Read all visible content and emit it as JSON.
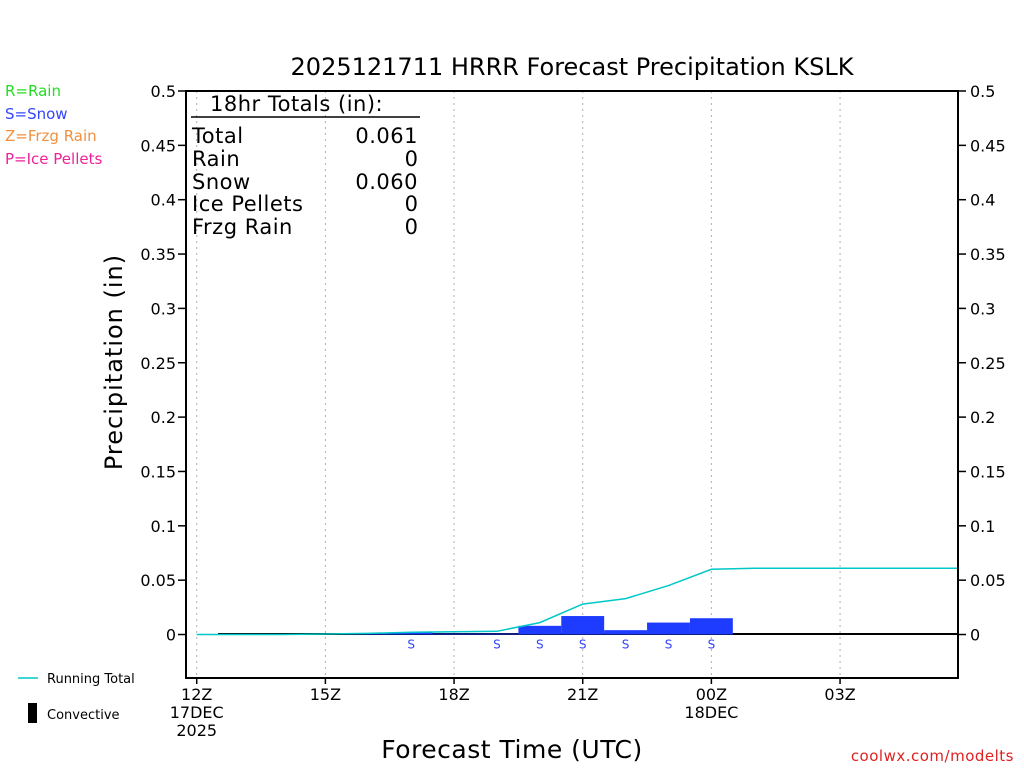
{
  "chart_data": {
    "type": "bar",
    "title": "2025121711 HRRR Forecast Precipitation KSLK",
    "xlabel": "Forecast Time (UTC)",
    "ylabel": "Precipitation (in)",
    "ylim": [
      -0.04,
      0.5
    ],
    "xlim_hours": [
      11.75,
      29.75
    ],
    "yticks": [
      0,
      0.05,
      0.1,
      0.15,
      0.2,
      0.25,
      0.3,
      0.35,
      0.4,
      0.45,
      0.5
    ],
    "ytick_labels": [
      "0",
      "0.05",
      "0.1",
      "0.15",
      "0.2",
      "0.25",
      "0.3",
      "0.35",
      "0.4",
      "0.45",
      "0.5"
    ],
    "xticks": [
      {
        "hour": 12,
        "lines": [
          "12Z",
          "17DEC",
          "2025"
        ]
      },
      {
        "hour": 15,
        "lines": [
          "15Z"
        ]
      },
      {
        "hour": 18,
        "lines": [
          "18Z"
        ]
      },
      {
        "hour": 21,
        "lines": [
          "21Z"
        ]
      },
      {
        "hour": 24,
        "lines": [
          "00Z",
          "18DEC"
        ]
      },
      {
        "hour": 27,
        "lines": [
          "03Z"
        ]
      }
    ],
    "grid": "vertical dotted",
    "bars": {
      "hours": [
        12,
        13,
        14,
        15,
        16,
        17,
        18,
        19,
        20,
        21,
        22,
        23,
        24,
        25,
        26,
        27,
        28,
        29
      ],
      "values": [
        0,
        0,
        0,
        0,
        0.0005,
        0.002,
        0.0005,
        0.0005,
        0.008,
        0.017,
        0.004,
        0.011,
        0.015,
        0,
        0,
        0,
        0,
        0
      ],
      "precip_type": [
        "",
        "",
        "",
        "",
        "",
        "S",
        "",
        "S",
        "S",
        "S",
        "S",
        "S",
        "S",
        "",
        "",
        "",
        "",
        ""
      ],
      "color": "#1e3cff"
    },
    "running_total": {
      "name": "Running Total",
      "hours": [
        12,
        13,
        14,
        15,
        16,
        17,
        18,
        19,
        20,
        21,
        22,
        23,
        24,
        25,
        26,
        27,
        28,
        29,
        29.75
      ],
      "values": [
        0,
        0,
        0,
        0.0005,
        0.001,
        0.002,
        0.0025,
        0.003,
        0.011,
        0.028,
        0.033,
        0.045,
        0.06,
        0.061,
        0.061,
        0.061,
        0.061,
        0.061,
        0.061
      ],
      "color": "#00c8c8"
    }
  },
  "totals_box": {
    "header": "18hr Totals (in):",
    "rows": [
      {
        "label": "Total",
        "value": "0.061"
      },
      {
        "label": "Rain",
        "value": "0"
      },
      {
        "label": "Snow",
        "value": "0.060"
      },
      {
        "label": "Ice Pellets",
        "value": "0"
      },
      {
        "label": "Frzg Rain",
        "value": "0"
      }
    ]
  },
  "type_legend": [
    {
      "text": "R=Rain",
      "color": "#22dd22"
    },
    {
      "text": "S=Snow",
      "color": "#3344ff"
    },
    {
      "text": "Z=Frzg Rain",
      "color": "#f09040"
    },
    {
      "text": "P=Ice Pellets",
      "color": "#ee2299"
    }
  ],
  "bottom_legend": {
    "running_total": "Running Total",
    "convective": "Convective"
  },
  "credit": "coolwx.com/modelts"
}
